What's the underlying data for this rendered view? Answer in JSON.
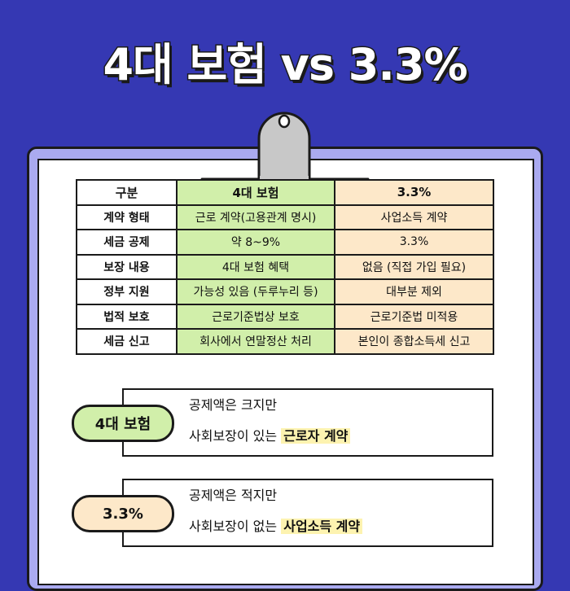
{
  "title": "4대 보험 vs 3.3%",
  "colors": {
    "background": "#3538b3",
    "board": "#aaaaf0",
    "clip": "#c8c8c8",
    "col_4dae": "#d1efaa",
    "col_33": "#fde8c9",
    "highlight": "#fdf3b0"
  },
  "table": {
    "headers": [
      "구분",
      "4대 보험",
      "3.3%"
    ],
    "rows": [
      [
        "계약 형태",
        "근로 계약(고용관계 명시)",
        "사업소득 계약"
      ],
      [
        "세금 공제",
        "약 8~9%",
        "3.3%"
      ],
      [
        "보장 내용",
        "4대 보험 혜택",
        "없음 (직접 가입 필요)"
      ],
      [
        "정부 지원",
        "가능성 있음 (두루누리 등)",
        "대부분 제외"
      ],
      [
        "법적 보호",
        "근로기준법상 보호",
        "근로기준법 미적용"
      ],
      [
        "세금 신고",
        "회사에서 연말정산 처리",
        "본인이 종합소득세 신고"
      ]
    ]
  },
  "summary": [
    {
      "label": "4대 보험",
      "line1": "공제액은 크지만",
      "line2_prefix": "사회보장이 있는 ",
      "line2_highlight": "근로자 계약"
    },
    {
      "label": "3.3%",
      "line1": "공제액은 적지만",
      "line2_prefix": "사회보장이 없는 ",
      "line2_highlight": "사업소득 계약"
    }
  ]
}
